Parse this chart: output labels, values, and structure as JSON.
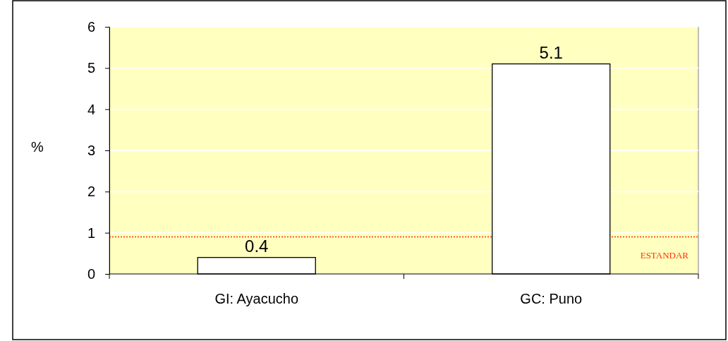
{
  "chart_data": {
    "type": "bar",
    "ylabel": "%",
    "categories": [
      "GI: Ayacucho",
      "GC: Puno"
    ],
    "values": [
      0.4,
      5.1
    ],
    "color": "#ffffff",
    "ylim": [
      0,
      6
    ],
    "yticks": [
      0,
      1,
      2,
      3,
      4,
      5,
      6
    ],
    "grid": "y",
    "data_labels": true,
    "ref_lines": [
      {
        "axis": "y",
        "value": 0.9,
        "label": "ESTANDAR",
        "color": "#ff3300",
        "line_style": "dotted"
      }
    ]
  }
}
